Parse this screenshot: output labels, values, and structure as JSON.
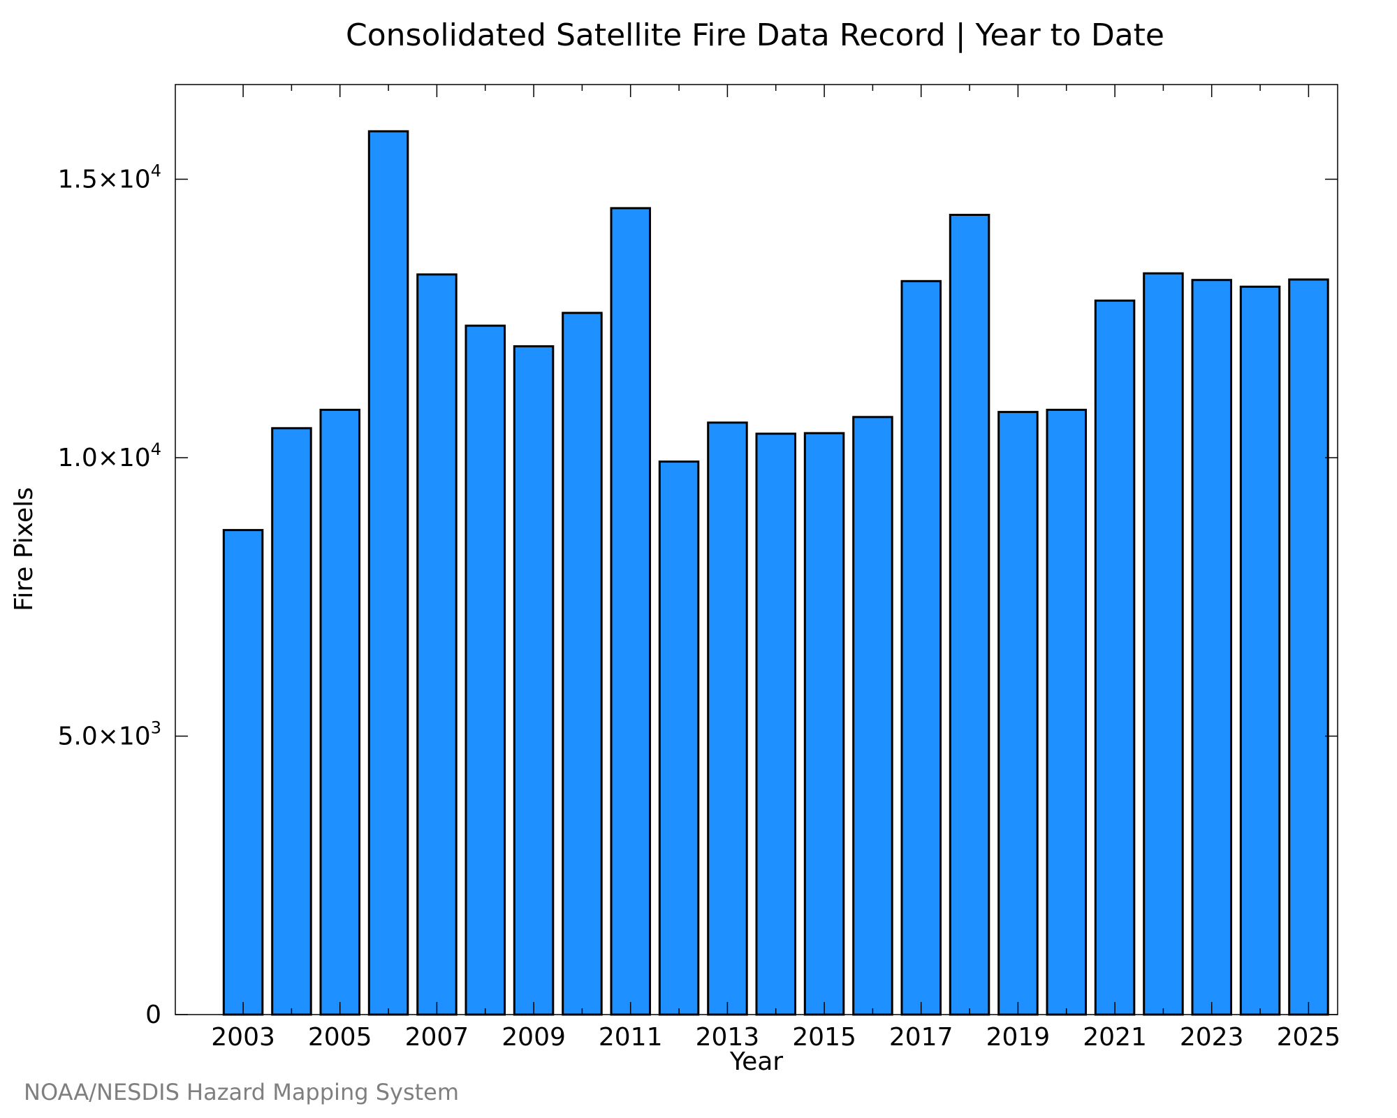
{
  "credit": "NOAA/NESDIS Hazard Mapping System",
  "colors": {
    "bar_fill": "#1e90ff",
    "bar_stroke": "#000000",
    "credit": "#7f7f7f"
  },
  "chart_data": {
    "type": "bar",
    "title": "Consolidated Satellite Fire Data Record | Year to Date",
    "xlabel": "Year",
    "ylabel": "Fire Pixels",
    "categories": [
      2003,
      2004,
      2005,
      2006,
      2007,
      2008,
      2009,
      2010,
      2011,
      2012,
      2013,
      2014,
      2015,
      2016,
      2017,
      2018,
      2019,
      2020,
      2021,
      2022,
      2023,
      2024,
      2025
    ],
    "values": [
      8700,
      10530,
      10860,
      15860,
      13290,
      12370,
      12000,
      12600,
      14480,
      9930,
      10630,
      10430,
      10440,
      10730,
      13170,
      14360,
      10820,
      10860,
      12820,
      13310,
      13190,
      13070,
      13200
    ],
    "ylim": [
      0,
      16700
    ],
    "yticks": [
      {
        "value": 0,
        "mantissa": "0",
        "exponent": ""
      },
      {
        "value": 5000,
        "mantissa": "5.0×10",
        "exponent": "3"
      },
      {
        "value": 10000,
        "mantissa": "1.0×10",
        "exponent": "4"
      },
      {
        "value": 15000,
        "mantissa": "1.5×10",
        "exponent": "4"
      }
    ],
    "xticks": [
      2003,
      2005,
      2007,
      2009,
      2011,
      2013,
      2015,
      2017,
      2019,
      2021,
      2023,
      2025
    ],
    "minor_xticks": [
      2004,
      2006,
      2008,
      2010,
      2012,
      2014,
      2016,
      2018,
      2020,
      2022,
      2024
    ],
    "xlim": [
      2001.6,
      2025.6
    ],
    "grid": false,
    "legend": "none"
  }
}
